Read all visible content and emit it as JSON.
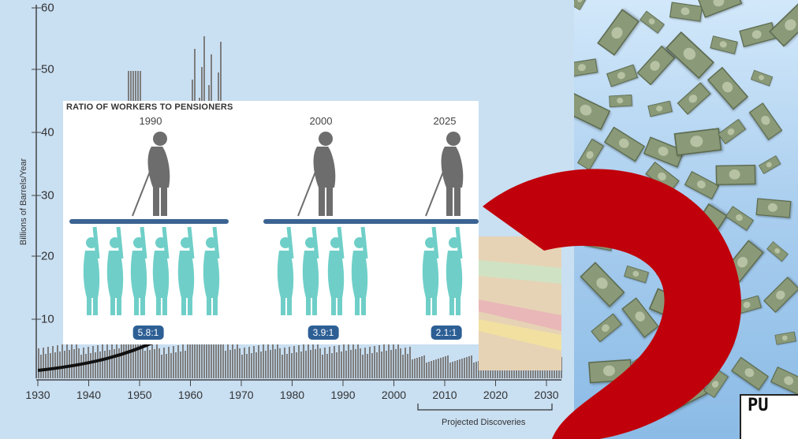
{
  "background_chart": {
    "ylabel": "Billions of Barrels/Year",
    "y_ticks": [
      "60",
      "50",
      "40",
      "30",
      "20",
      "10"
    ],
    "x_ticks": [
      "1930",
      "1940",
      "1950",
      "1960",
      "1970",
      "1980",
      "1990",
      "2000",
      "2010",
      "2020",
      "2030"
    ],
    "projected_label": "Projected Discoveries"
  },
  "ratio_panel": {
    "title": "RATIO OF WORKERS TO PENSIONERS",
    "groups": [
      {
        "year": "1990",
        "ratio": "5.8:1",
        "workers": 6
      },
      {
        "year": "2000",
        "ratio": "3.9:1",
        "workers": 4
      },
      {
        "year": "2025",
        "ratio": "2.1:1",
        "workers": 2
      }
    ]
  },
  "sign": {
    "text": "PU"
  },
  "colors": {
    "red_curve": "#c0000a",
    "worker": "#6fcfc8",
    "pensioner": "#6d6d6d",
    "bar_platform": "#3b6392",
    "badge": "#2d5f95"
  }
}
